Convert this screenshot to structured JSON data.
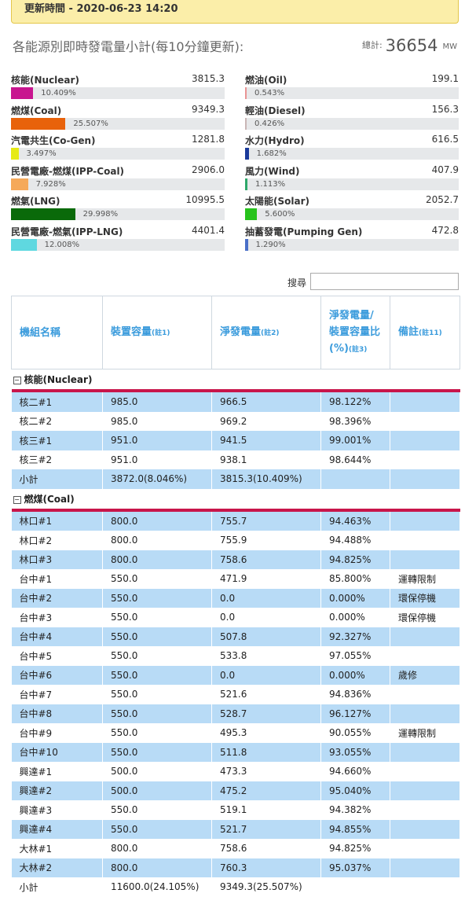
{
  "update_banner": "更新時間 - 2020-06-23 14:20",
  "summary": {
    "title": "各能源別即時發電量小計(每10分鐘更新):",
    "total_label": "總計:",
    "total_value": "36654",
    "total_unit": "MW",
    "sources": [
      {
        "name": "核能(Nuclear)",
        "value": "3815.3",
        "percent": "10.409%",
        "color": "#c8158f"
      },
      {
        "name": "燃油(Oil)",
        "value": "199.1",
        "percent": "0.543%",
        "color": "#e99494"
      },
      {
        "name": "燃煤(Coal)",
        "value": "9349.3",
        "percent": "25.507%",
        "color": "#e8620b"
      },
      {
        "name": "輕油(Diesel)",
        "value": "156.3",
        "percent": "0.426%",
        "color": "#c9b6b6"
      },
      {
        "name": "汽電共生(Co-Gen)",
        "value": "1281.8",
        "percent": "3.497%",
        "color": "#e6ea14"
      },
      {
        "name": "水力(Hydro)",
        "value": "616.5",
        "percent": "1.682%",
        "color": "#1a3a9a"
      },
      {
        "name": "民營電廠-燃煤(IPP-Coal)",
        "value": "2906.0",
        "percent": "7.928%",
        "color": "#f5a95a"
      },
      {
        "name": "風力(Wind)",
        "value": "407.9",
        "percent": "1.113%",
        "color": "#2ea86a"
      },
      {
        "name": "燃氣(LNG)",
        "value": "10995.5",
        "percent": "29.998%",
        "color": "#0a6a0a"
      },
      {
        "name": "太陽能(Solar)",
        "value": "2052.7",
        "percent": "5.600%",
        "color": "#27c31c"
      },
      {
        "name": "民營電廠-燃氣(IPP-LNG)",
        "value": "4401.4",
        "percent": "12.008%",
        "color": "#5fd8e0"
      },
      {
        "name": "抽蓄發電(Pumping Gen)",
        "value": "472.8",
        "percent": "1.290%",
        "color": "#4a6fc8"
      }
    ]
  },
  "search": {
    "label": "搜尋",
    "placeholder": ""
  },
  "table": {
    "headers": {
      "unit": "機組名稱",
      "capacity": "裝置容量",
      "capacity_note": "(註1)",
      "net": "淨發電量",
      "net_note": "(註2)",
      "ratio": "淨發電量/裝置容量比(%)",
      "ratio_note": "(註3)",
      "remark": "備註",
      "remark_note": "(註11)"
    },
    "groups": [
      {
        "title": "核能(Nuclear)",
        "rows": [
          [
            "核二#1",
            "985.0",
            "966.5",
            "98.122%",
            ""
          ],
          [
            "核二#2",
            "985.0",
            "969.2",
            "98.396%",
            ""
          ],
          [
            "核三#1",
            "951.0",
            "941.5",
            "99.001%",
            ""
          ],
          [
            "核三#2",
            "951.0",
            "938.1",
            "98.644%",
            ""
          ],
          [
            "小計",
            "3872.0(8.046%)",
            "3815.3(10.409%)",
            "",
            ""
          ]
        ]
      },
      {
        "title": "燃煤(Coal)",
        "rows": [
          [
            "林口#1",
            "800.0",
            "755.7",
            "94.463%",
            ""
          ],
          [
            "林口#2",
            "800.0",
            "755.9",
            "94.488%",
            ""
          ],
          [
            "林口#3",
            "800.0",
            "758.6",
            "94.825%",
            ""
          ],
          [
            "台中#1",
            "550.0",
            "471.9",
            "85.800%",
            "運轉限制"
          ],
          [
            "台中#2",
            "550.0",
            "0.0",
            "0.000%",
            "環保停機"
          ],
          [
            "台中#3",
            "550.0",
            "0.0",
            "0.000%",
            "環保停機"
          ],
          [
            "台中#4",
            "550.0",
            "507.8",
            "92.327%",
            ""
          ],
          [
            "台中#5",
            "550.0",
            "533.8",
            "97.055%",
            ""
          ],
          [
            "台中#6",
            "550.0",
            "0.0",
            "0.000%",
            "歲修"
          ],
          [
            "台中#7",
            "550.0",
            "521.6",
            "94.836%",
            ""
          ],
          [
            "台中#8",
            "550.0",
            "528.7",
            "96.127%",
            ""
          ],
          [
            "台中#9",
            "550.0",
            "495.3",
            "90.055%",
            "運轉限制"
          ],
          [
            "台中#10",
            "550.0",
            "511.8",
            "93.055%",
            ""
          ],
          [
            "興達#1",
            "500.0",
            "473.3",
            "94.660%",
            ""
          ],
          [
            "興達#2",
            "500.0",
            "475.2",
            "95.040%",
            ""
          ],
          [
            "興達#3",
            "550.0",
            "519.1",
            "94.382%",
            ""
          ],
          [
            "興達#4",
            "550.0",
            "521.7",
            "94.855%",
            ""
          ],
          [
            "大林#1",
            "800.0",
            "758.6",
            "94.825%",
            ""
          ],
          [
            "大林#2",
            "800.0",
            "760.3",
            "95.037%",
            ""
          ],
          [
            "小計",
            "11600.0(24.105%)",
            "9349.3(25.507%)",
            "",
            ""
          ]
        ]
      }
    ]
  }
}
